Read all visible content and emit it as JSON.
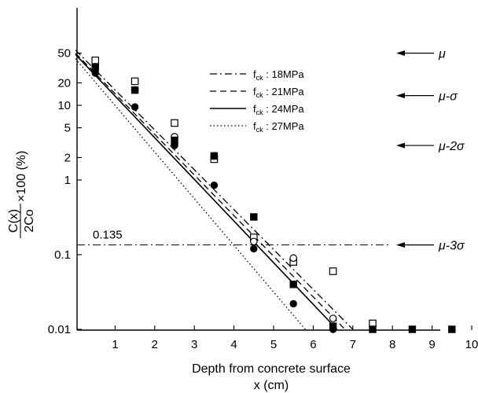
{
  "chart_data": {
    "type": "scatter",
    "title": "",
    "xlabel": "Depth from concrete surface",
    "xlabel_unit": "x (cm)",
    "ylabel": {
      "numerator": "C(x)",
      "denominator": "2Co",
      "suffix": "×100 (%)"
    },
    "x_range": [
      0,
      13.4
    ],
    "y_scale": "log",
    "y_range": [
      0.01,
      100
    ],
    "x_ticks": [
      "1",
      "2",
      "3",
      "4",
      "5",
      "6",
      "7",
      "8",
      "9",
      "10"
    ],
    "y_ticks": [
      {
        "label": "50",
        "value": 50
      },
      {
        "label": "20",
        "value": 20
      },
      {
        "label": "10",
        "value": 10
      },
      {
        "label": "5",
        "value": 5
      },
      {
        "label": "2",
        "value": 2
      },
      {
        "label": "1",
        "value": 1
      },
      {
        "label": "0.1",
        "value": 0.1
      },
      {
        "label": "0.01",
        "value": 0.01
      }
    ],
    "grid": false,
    "legend_position": "top-center",
    "series": [
      {
        "name": "f_ck : 18MPa",
        "sub": "ck",
        "suffix": " : 18MPa",
        "line": "dash-dot",
        "marker": "open-square",
        "fit": [
          [
            0,
            55
          ],
          [
            7.0,
            0.01
          ]
        ],
        "points": [
          [
            0.5,
            40
          ],
          [
            1.5,
            21
          ],
          [
            2.5,
            5.8
          ],
          [
            3.5,
            1.9
          ],
          [
            4.5,
            0.17
          ],
          [
            5.5,
            0.08
          ],
          [
            6.5,
            0.06
          ],
          [
            7.5,
            0.012
          ]
        ]
      },
      {
        "name": "f_ck : 21MPa",
        "sub": "ck",
        "suffix": " : 21MPa",
        "line": "dashed",
        "marker": "open-circle",
        "fit": [
          [
            0,
            50
          ],
          [
            6.8,
            0.01
          ]
        ],
        "points": [
          [
            0.5,
            33
          ],
          [
            1.5,
            16
          ],
          [
            2.5,
            3.8
          ],
          [
            3.5,
            2.1
          ],
          [
            4.5,
            0.15
          ],
          [
            5.5,
            0.09
          ],
          [
            6.5,
            0.014
          ]
        ]
      },
      {
        "name": "f_ck : 24MPa",
        "sub": "ck",
        "suffix": " : 24MPa",
        "line": "solid",
        "marker": "filled-square",
        "fit": [
          [
            0,
            48
          ],
          [
            6.6,
            0.01
          ]
        ],
        "points": [
          [
            0.5,
            32
          ],
          [
            1.5,
            16
          ],
          [
            2.5,
            3.4
          ],
          [
            3.5,
            2.1
          ],
          [
            4.5,
            0.32
          ],
          [
            5.5,
            0.04
          ],
          [
            6.5,
            0.011
          ],
          [
            7.5,
            0.01
          ],
          [
            8.5,
            0.01
          ],
          [
            9.5,
            0.01
          ]
        ]
      },
      {
        "name": "f_ck : 27MPa",
        "sub": "ck",
        "suffix": " : 27MPa",
        "line": "dotted",
        "marker": "filled-circle",
        "fit": [
          [
            0,
            42
          ],
          [
            5.8,
            0.01
          ]
        ],
        "points": [
          [
            0.5,
            27
          ],
          [
            1.5,
            9.5
          ],
          [
            2.5,
            2.9
          ],
          [
            3.5,
            0.85
          ],
          [
            4.5,
            0.12
          ],
          [
            5.5,
            0.022
          ],
          [
            6.5,
            0.01
          ]
        ]
      }
    ],
    "reference_line": {
      "label": "0.135",
      "value": 0.135,
      "style": "dash-dot"
    },
    "annotations": [
      {
        "label": "μ",
        "value": 50
      },
      {
        "label": "μ-σ",
        "value": 13.5
      },
      {
        "label": "μ-2σ",
        "value": 2.9
      },
      {
        "label": "μ-3σ",
        "value": 0.135
      }
    ]
  }
}
